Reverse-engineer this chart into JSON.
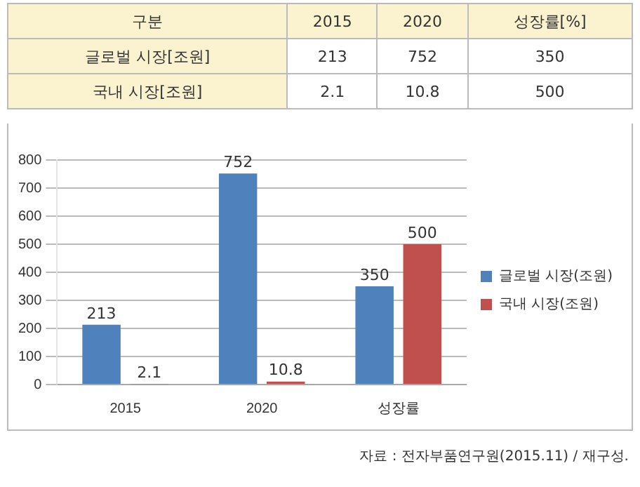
{
  "chart_data": [
    {
      "type": "other",
      "legend_title": "구분",
      "categories": [
        "2015",
        "2020",
        "성장률[%]"
      ],
      "series": [
        {
          "name": "글로벌 시장[조원]",
          "values": [
            213,
            752,
            350
          ]
        },
        {
          "name": "국내 시장[조원]",
          "values": [
            2.1,
            10.8,
            500
          ]
        }
      ],
      "data_labels": true
    },
    {
      "type": "bar",
      "categories": [
        "2015",
        "2020",
        "성장률"
      ],
      "series": [
        {
          "name": "글로벌 시장(조원)",
          "color": "#4f81bd",
          "values": [
            213,
            752,
            350
          ]
        },
        {
          "name": "국내 시장(조원)",
          "color": "#c0504d",
          "values": [
            2.1,
            10.8,
            500
          ]
        }
      ],
      "ylim": [
        0,
        800
      ],
      "yticks": [
        0,
        100,
        200,
        300,
        400,
        500,
        600,
        700,
        800
      ],
      "grid": "y",
      "legend": "right",
      "data_labels": true,
      "annotations": [
        "자료 : 전자부품연구원(2015.11) / 재구성."
      ]
    }
  ]
}
